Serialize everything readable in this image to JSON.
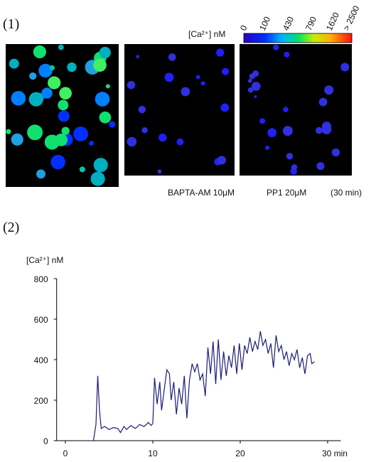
{
  "figure": {
    "panel1_label": "(1)",
    "colorbar_title": "[Ca²⁺] nM",
    "colorbar_ticks": [
      "0",
      "100",
      "430",
      "790",
      "1620",
      "> 2500"
    ],
    "captions": [
      "BAPTA-AM 10μM",
      "PP1 20μM",
      "(30 min)"
    ],
    "panel2_label": "(2)"
  },
  "chart_data": {
    "type": "line",
    "y_label": "[Ca²⁺] nM",
    "x": [
      3.2,
      3.5,
      3.7,
      3.9,
      4.1,
      4.5,
      5,
      5.5,
      6,
      6.3,
      6.7,
      7,
      7.5,
      8,
      8.5,
      9,
      9.5,
      9.8,
      10,
      10.2,
      10.5,
      10.8,
      11,
      11.3,
      11.6,
      11.9,
      12.1,
      12.4,
      12.7,
      13,
      13.3,
      13.6,
      13.9,
      14.2,
      14.5,
      14.8,
      15.1,
      15.4,
      15.7,
      16,
      16.3,
      16.6,
      16.9,
      17.2,
      17.5,
      17.8,
      18.1,
      18.4,
      18.7,
      19,
      19.3,
      19.6,
      19.9,
      20.2,
      20.5,
      20.8,
      21.1,
      21.4,
      21.7,
      22,
      22.3,
      22.6,
      22.9,
      23.2,
      23.5,
      23.8,
      24.1,
      24.4,
      24.7,
      25,
      25.3,
      25.6,
      25.9,
      26.2,
      26.5,
      26.8,
      27.1,
      27.4,
      27.7,
      28,
      28.2,
      28.5
    ],
    "values": [
      0,
      80,
      320,
      150,
      60,
      70,
      55,
      65,
      60,
      40,
      70,
      55,
      75,
      60,
      80,
      70,
      90,
      75,
      85,
      310,
      180,
      290,
      150,
      250,
      350,
      330,
      200,
      290,
      130,
      260,
      180,
      320,
      110,
      300,
      380,
      340,
      380,
      300,
      330,
      220,
      460,
      330,
      490,
      280,
      500,
      300,
      440,
      320,
      420,
      360,
      470,
      330,
      480,
      350,
      470,
      430,
      510,
      440,
      490,
      450,
      540,
      470,
      500,
      430,
      480,
      360,
      520,
      440,
      470,
      400,
      440,
      370,
      430,
      400,
      450,
      360,
      410,
      330,
      420,
      430,
      380,
      390
    ],
    "color": "#1c1c78",
    "xlim": [
      -1,
      31.5
    ],
    "ylim": [
      0,
      800
    ],
    "xticks": [
      0,
      10,
      20,
      {
        "value": 30,
        "label": "30 min"
      }
    ],
    "yticks": [
      0,
      200,
      400,
      600,
      800
    ]
  }
}
